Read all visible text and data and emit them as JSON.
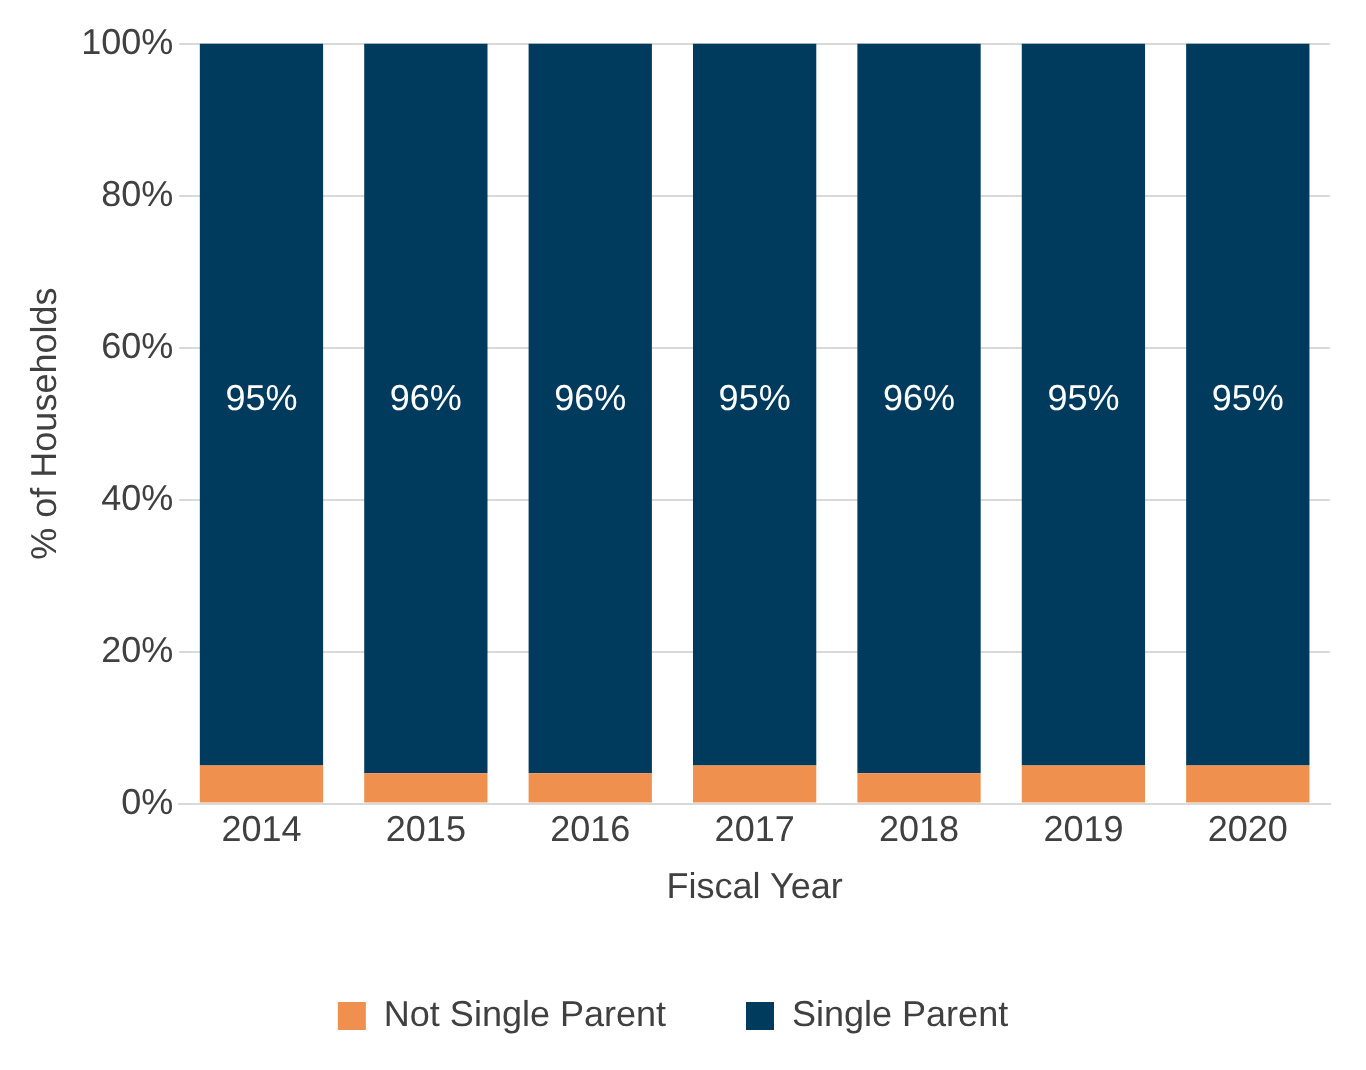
{
  "chart_data": {
    "type": "bar",
    "stacked": true,
    "xlabel": "Fiscal Year",
    "ylabel": "% of Households",
    "categories": [
      "2014",
      "2015",
      "2016",
      "2017",
      "2018",
      "2019",
      "2020"
    ],
    "series": [
      {
        "name": "Not Single Parent",
        "color": "#f0904f",
        "values": [
          5,
          4,
          4,
          5,
          4,
          5,
          5
        ]
      },
      {
        "name": "Single Parent",
        "color": "#003a5c",
        "values": [
          95,
          96,
          96,
          95,
          96,
          95,
          95
        ],
        "value_labels": [
          "95%",
          "96%",
          "96%",
          "95%",
          "96%",
          "95%",
          "95%"
        ]
      }
    ],
    "ylim": [
      0,
      100
    ],
    "yticks": [
      {
        "value": 0,
        "label": "0%"
      },
      {
        "value": 20,
        "label": "20%"
      },
      {
        "value": 40,
        "label": "40%"
      },
      {
        "value": 60,
        "label": "60%"
      },
      {
        "value": 80,
        "label": "80%"
      },
      {
        "value": 100,
        "label": "100%"
      }
    ],
    "grid": "y",
    "legend": "bottom"
  }
}
